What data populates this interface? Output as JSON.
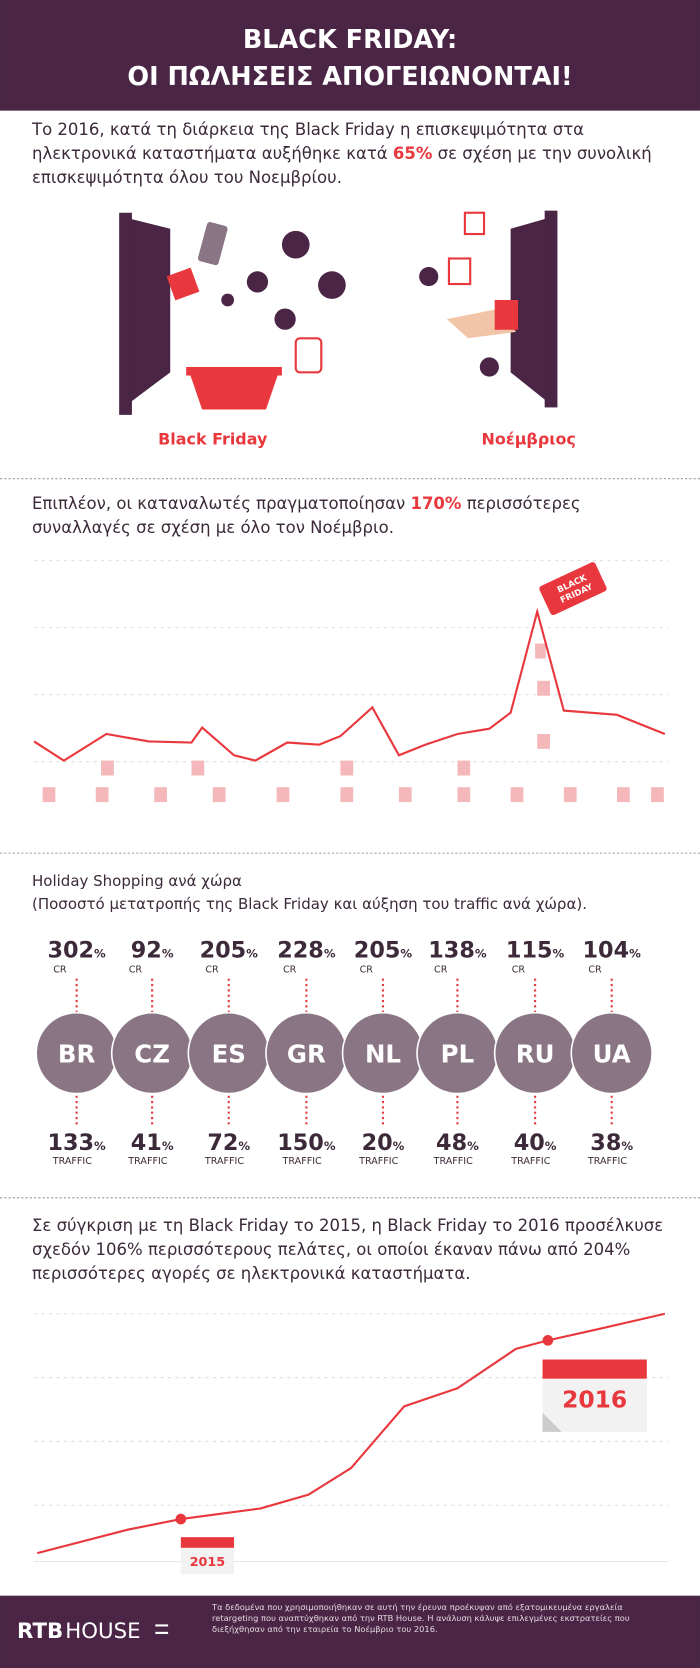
{
  "header": {
    "title_line1": "BLACK FRIDAY:",
    "title_line2": "ΟΙ ΠΩΛΗΣΕΙΣ ΑΠΟΓΕΙΩΝΟΝΤΑΙ!"
  },
  "intro": {
    "before": "Το 2016, κατά τη διάρκεια της Black Friday η επισκεψιμότητα στα ηλεκτρονικά καταστήματα αυξήθηκε κατά ",
    "highlight": "65%",
    "after": " σε σχέση με την συνολική επισκεψιμότητα όλου του Νοεμβρίου."
  },
  "illustration": {
    "left_label": "Black Friday",
    "right_label": "Νοέμβριος"
  },
  "transactions": {
    "before": "Επιπλέον, οι καταναλωτές πραγματοποίησαν ",
    "highlight": "170%",
    "after": " περισσότερες συναλλαγές σε σχέση με όλο τον Νοέμβριο.",
    "tag_line1": "BLACK",
    "tag_line2": "FRIDAY"
  },
  "countries_section": {
    "title": "Holiday Shopping ανά χώρα",
    "subtitle": "(Ποσοστό μετατροπής της Black Friday και αύξηση του traffic ανά χώρα).",
    "percent_sign": "%",
    "cr_label": "CR",
    "traffic_label": "TRAFFIC",
    "countries": [
      {
        "code": "BR",
        "cr": 302,
        "traffic": 133
      },
      {
        "code": "CZ",
        "cr": 92,
        "traffic": 41
      },
      {
        "code": "ES",
        "cr": 205,
        "traffic": 72
      },
      {
        "code": "GR",
        "cr": 228,
        "traffic": 150
      },
      {
        "code": "NL",
        "cr": 205,
        "traffic": 20
      },
      {
        "code": "PL",
        "cr": 138,
        "traffic": 48
      },
      {
        "code": "RU",
        "cr": 115,
        "traffic": 40
      },
      {
        "code": "UA",
        "cr": 104,
        "traffic": 38
      }
    ]
  },
  "comparison": {
    "text": "Σε σύγκριση με τη Black Friday το 2015, η Black Friday το 2016 προσέλκυσε σχεδόν 106% περισσότερους πελάτες, οι οποίοι έκαναν πάνω από 204% περισσότερες αγορές σε ηλεκτρονικά καταστήματα.",
    "year_start": "2015",
    "year_end": "2016"
  },
  "footer": {
    "logo_bold": "RTB",
    "logo_light": "HOUSE",
    "note": "Τα δεδομένα που χρησιμοποιήθηκαν σε αυτή την έρευνα προέκυψαν από εξατομικευμένα εργαλεία retargeting που αναπτύχθηκαν από την RTB House. Η ανάλυση κάλυψε επιλεγμένες εκστρατείες που διεξήχθησαν από την εταιρεία το Νοέμβριο του 2016."
  }
}
